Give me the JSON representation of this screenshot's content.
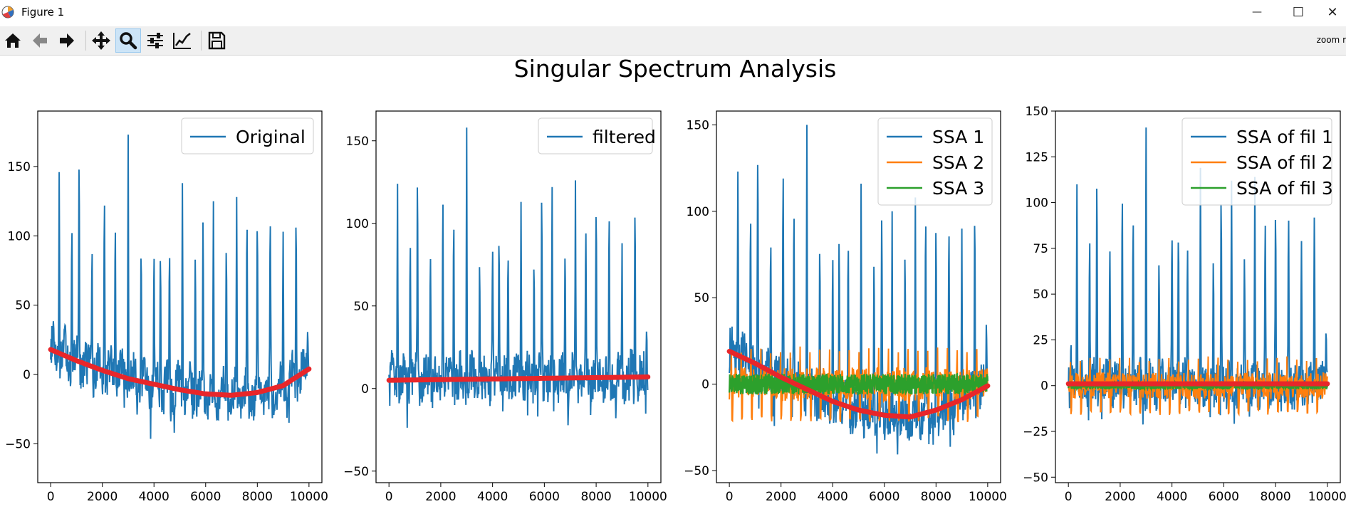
{
  "window": {
    "title": "Figure 1",
    "min_glyph": "—",
    "max_glyph": "☐",
    "close_glyph": "✕"
  },
  "toolbar": {
    "tools": [
      {
        "name": "home-icon",
        "label": "Home"
      },
      {
        "name": "back-arrow-icon",
        "label": "Back"
      },
      {
        "name": "forward-arrow-icon",
        "label": "Forward"
      },
      {
        "name": "pan-icon",
        "label": "Pan"
      },
      {
        "name": "zoom-icon",
        "label": "Zoom",
        "active": true
      },
      {
        "name": "configure-subplots-icon",
        "label": "Subplots"
      },
      {
        "name": "edit-axis-icon",
        "label": "Customize"
      },
      {
        "name": "save-icon",
        "label": "Save"
      }
    ],
    "status": "zoom r"
  },
  "figure": {
    "suptitle": "Singular Spectrum Analysis"
  },
  "chart_data": [
    {
      "type": "line",
      "xlim": [
        -500,
        10500
      ],
      "ylim": [
        -78,
        190
      ],
      "xticks": [
        0,
        2000,
        4000,
        6000,
        8000,
        10000
      ],
      "yticks": [
        -50,
        0,
        50,
        100,
        150
      ],
      "legend": "top-right",
      "grid": false,
      "series": [
        {
          "name": "Original",
          "color": "#1f77b4",
          "in_legend": true,
          "kind": "signal",
          "base": 5,
          "noise": 14,
          "offset": 8,
          "spikes": [
            [
              100,
              38
            ],
            [
              330,
              146
            ],
            [
              820,
              120
            ],
            [
              1100,
              178
            ],
            [
              1600,
              106
            ],
            [
              2080,
              150
            ],
            [
              2500,
              126
            ],
            [
              3000,
              173
            ],
            [
              3500,
              104
            ],
            [
              4000,
              98
            ],
            [
              4250,
              104
            ],
            [
              4600,
              105
            ],
            [
              5100,
              138
            ],
            [
              5600,
              104
            ],
            [
              5900,
              131
            ],
            [
              6300,
              125
            ],
            [
              6800,
              105
            ],
            [
              7200,
              128
            ],
            [
              7600,
              129
            ],
            [
              8000,
              125
            ],
            [
              8500,
              131
            ],
            [
              9000,
              103
            ],
            [
              9500,
              131
            ],
            [
              9950,
              37
            ]
          ]
        },
        {
          "name": "trend",
          "color": "#e8262a",
          "in_legend": false,
          "kind": "trend",
          "points": [
            [
              0,
              18
            ],
            [
              1000,
              10
            ],
            [
              2000,
              3
            ],
            [
              3000,
              -3
            ],
            [
              4000,
              -7
            ],
            [
              5000,
              -11
            ],
            [
              6000,
              -14
            ],
            [
              7000,
              -15
            ],
            [
              8000,
              -13
            ],
            [
              9000,
              -8
            ],
            [
              10000,
              4
            ]
          ]
        }
      ]
    },
    {
      "type": "line",
      "xlim": [
        -500,
        10500
      ],
      "ylim": [
        -57,
        168
      ],
      "xticks": [
        0,
        2000,
        4000,
        6000,
        8000,
        10000
      ],
      "yticks": [
        -50,
        0,
        50,
        100,
        150
      ],
      "legend": "top-right",
      "grid": false,
      "series": [
        {
          "name": "filtered",
          "color": "#1f77b4",
          "in_legend": true,
          "kind": "signal",
          "base": 0,
          "noise": 13,
          "offset": 5,
          "spikes": [
            [
              100,
              25
            ],
            [
              330,
              124
            ],
            [
              820,
              101
            ],
            [
              1100,
              146
            ],
            [
              1600,
              95
            ],
            [
              2080,
              135
            ],
            [
              2500,
              116
            ],
            [
              3000,
              158
            ],
            [
              3500,
              87
            ],
            [
              4000,
              100
            ],
            [
              4250,
              105
            ],
            [
              4600,
              91
            ],
            [
              5100,
              113
            ],
            [
              5600,
              85
            ],
            [
              5900,
              133
            ],
            [
              6300,
              122
            ],
            [
              6800,
              94
            ],
            [
              7200,
              126
            ],
            [
              7600,
              113
            ],
            [
              8000,
              120
            ],
            [
              8500,
              120
            ],
            [
              9000,
              88
            ],
            [
              9500,
              121
            ],
            [
              9950,
              40
            ]
          ]
        },
        {
          "name": "trend",
          "color": "#e8262a",
          "in_legend": false,
          "kind": "trend",
          "points": [
            [
              0,
              5
            ],
            [
              5000,
              6
            ],
            [
              10000,
              7
            ]
          ]
        }
      ]
    },
    {
      "type": "line",
      "xlim": [
        -500,
        10500
      ],
      "ylim": [
        -57,
        158
      ],
      "xticks": [
        0,
        2000,
        4000,
        6000,
        8000,
        10000
      ],
      "yticks": [
        -50,
        0,
        50,
        100,
        150
      ],
      "legend": "top-right",
      "grid": false,
      "series": [
        {
          "name": "SSA 1",
          "color": "#1f77b4",
          "in_legend": true,
          "kind": "signal",
          "base": 0,
          "noise": 13,
          "offset": 3,
          "spikes": [
            [
              100,
              35
            ],
            [
              330,
              123
            ],
            [
              820,
              108
            ],
            [
              1100,
              151
            ],
            [
              1600,
              95
            ],
            [
              2080,
              142
            ],
            [
              2500,
              115
            ],
            [
              3000,
              150
            ],
            [
              3500,
              90
            ],
            [
              4000,
              88
            ],
            [
              4250,
              100
            ],
            [
              4600,
              93
            ],
            [
              5100,
              116
            ],
            [
              5600,
              85
            ],
            [
              5900,
              115
            ],
            [
              6300,
              100
            ],
            [
              6800,
              92
            ],
            [
              7200,
              108
            ],
            [
              7600,
              112
            ],
            [
              8000,
              108
            ],
            [
              8500,
              107
            ],
            [
              9000,
              90
            ],
            [
              9500,
              111
            ],
            [
              9950,
              40
            ]
          ]
        },
        {
          "name": "SSA 2",
          "color": "#ff7f0e",
          "in_legend": true,
          "kind": "osc",
          "amp": 22
        },
        {
          "name": "SSA 3",
          "color": "#2ca02c",
          "in_legend": true,
          "kind": "band",
          "amp": 6
        },
        {
          "name": "trend",
          "color": "#e8262a",
          "in_legend": false,
          "kind": "trend",
          "points": [
            [
              0,
              19
            ],
            [
              1000,
              12
            ],
            [
              2000,
              4
            ],
            [
              3000,
              -3
            ],
            [
              4000,
              -10
            ],
            [
              5000,
              -15
            ],
            [
              6000,
              -18
            ],
            [
              7000,
              -19
            ],
            [
              8000,
              -15
            ],
            [
              9000,
              -9
            ],
            [
              10000,
              -1
            ]
          ]
        }
      ]
    },
    {
      "type": "line",
      "xlim": [
        -500,
        10500
      ],
      "ylim": [
        -53,
        150
      ],
      "xticks": [
        0,
        2000,
        4000,
        6000,
        8000,
        10000
      ],
      "yticks": [
        -50,
        -25,
        0,
        25,
        50,
        75,
        100,
        125,
        150
      ],
      "legend": "top-right",
      "grid": false,
      "series": [
        {
          "name": "SSA of fil 1",
          "color": "#1f77b4",
          "in_legend": true,
          "kind": "signal",
          "base": 0,
          "noise": 12,
          "offset": 3,
          "spikes": [
            [
              100,
              24
            ],
            [
              330,
              110
            ],
            [
              820,
              92
            ],
            [
              1100,
              131
            ],
            [
              1600,
              87
            ],
            [
              2080,
              121
            ],
            [
              2500,
              107
            ],
            [
              3000,
              141
            ],
            [
              3500,
              80
            ],
            [
              4000,
              95
            ],
            [
              4250,
              97
            ],
            [
              4600,
              87
            ],
            [
              5100,
              119
            ],
            [
              5600,
              79
            ],
            [
              5900,
              116
            ],
            [
              6300,
              112
            ],
            [
              6800,
              82
            ],
            [
              7200,
              114
            ],
            [
              7600,
              102
            ],
            [
              8000,
              109
            ],
            [
              8500,
              109
            ],
            [
              9000,
              79
            ],
            [
              9500,
              108
            ],
            [
              9950,
              36
            ]
          ]
        },
        {
          "name": "SSA of fil 2",
          "color": "#ff7f0e",
          "in_legend": true,
          "kind": "osc",
          "amp": 16
        },
        {
          "name": "SSA of fil 3",
          "color": "#2ca02c",
          "in_legend": true,
          "kind": "band",
          "amp": 2
        },
        {
          "name": "trend",
          "color": "#e8262a",
          "in_legend": false,
          "kind": "trend",
          "points": [
            [
              0,
              1
            ],
            [
              5000,
              1
            ],
            [
              10000,
              1
            ]
          ]
        }
      ]
    }
  ]
}
